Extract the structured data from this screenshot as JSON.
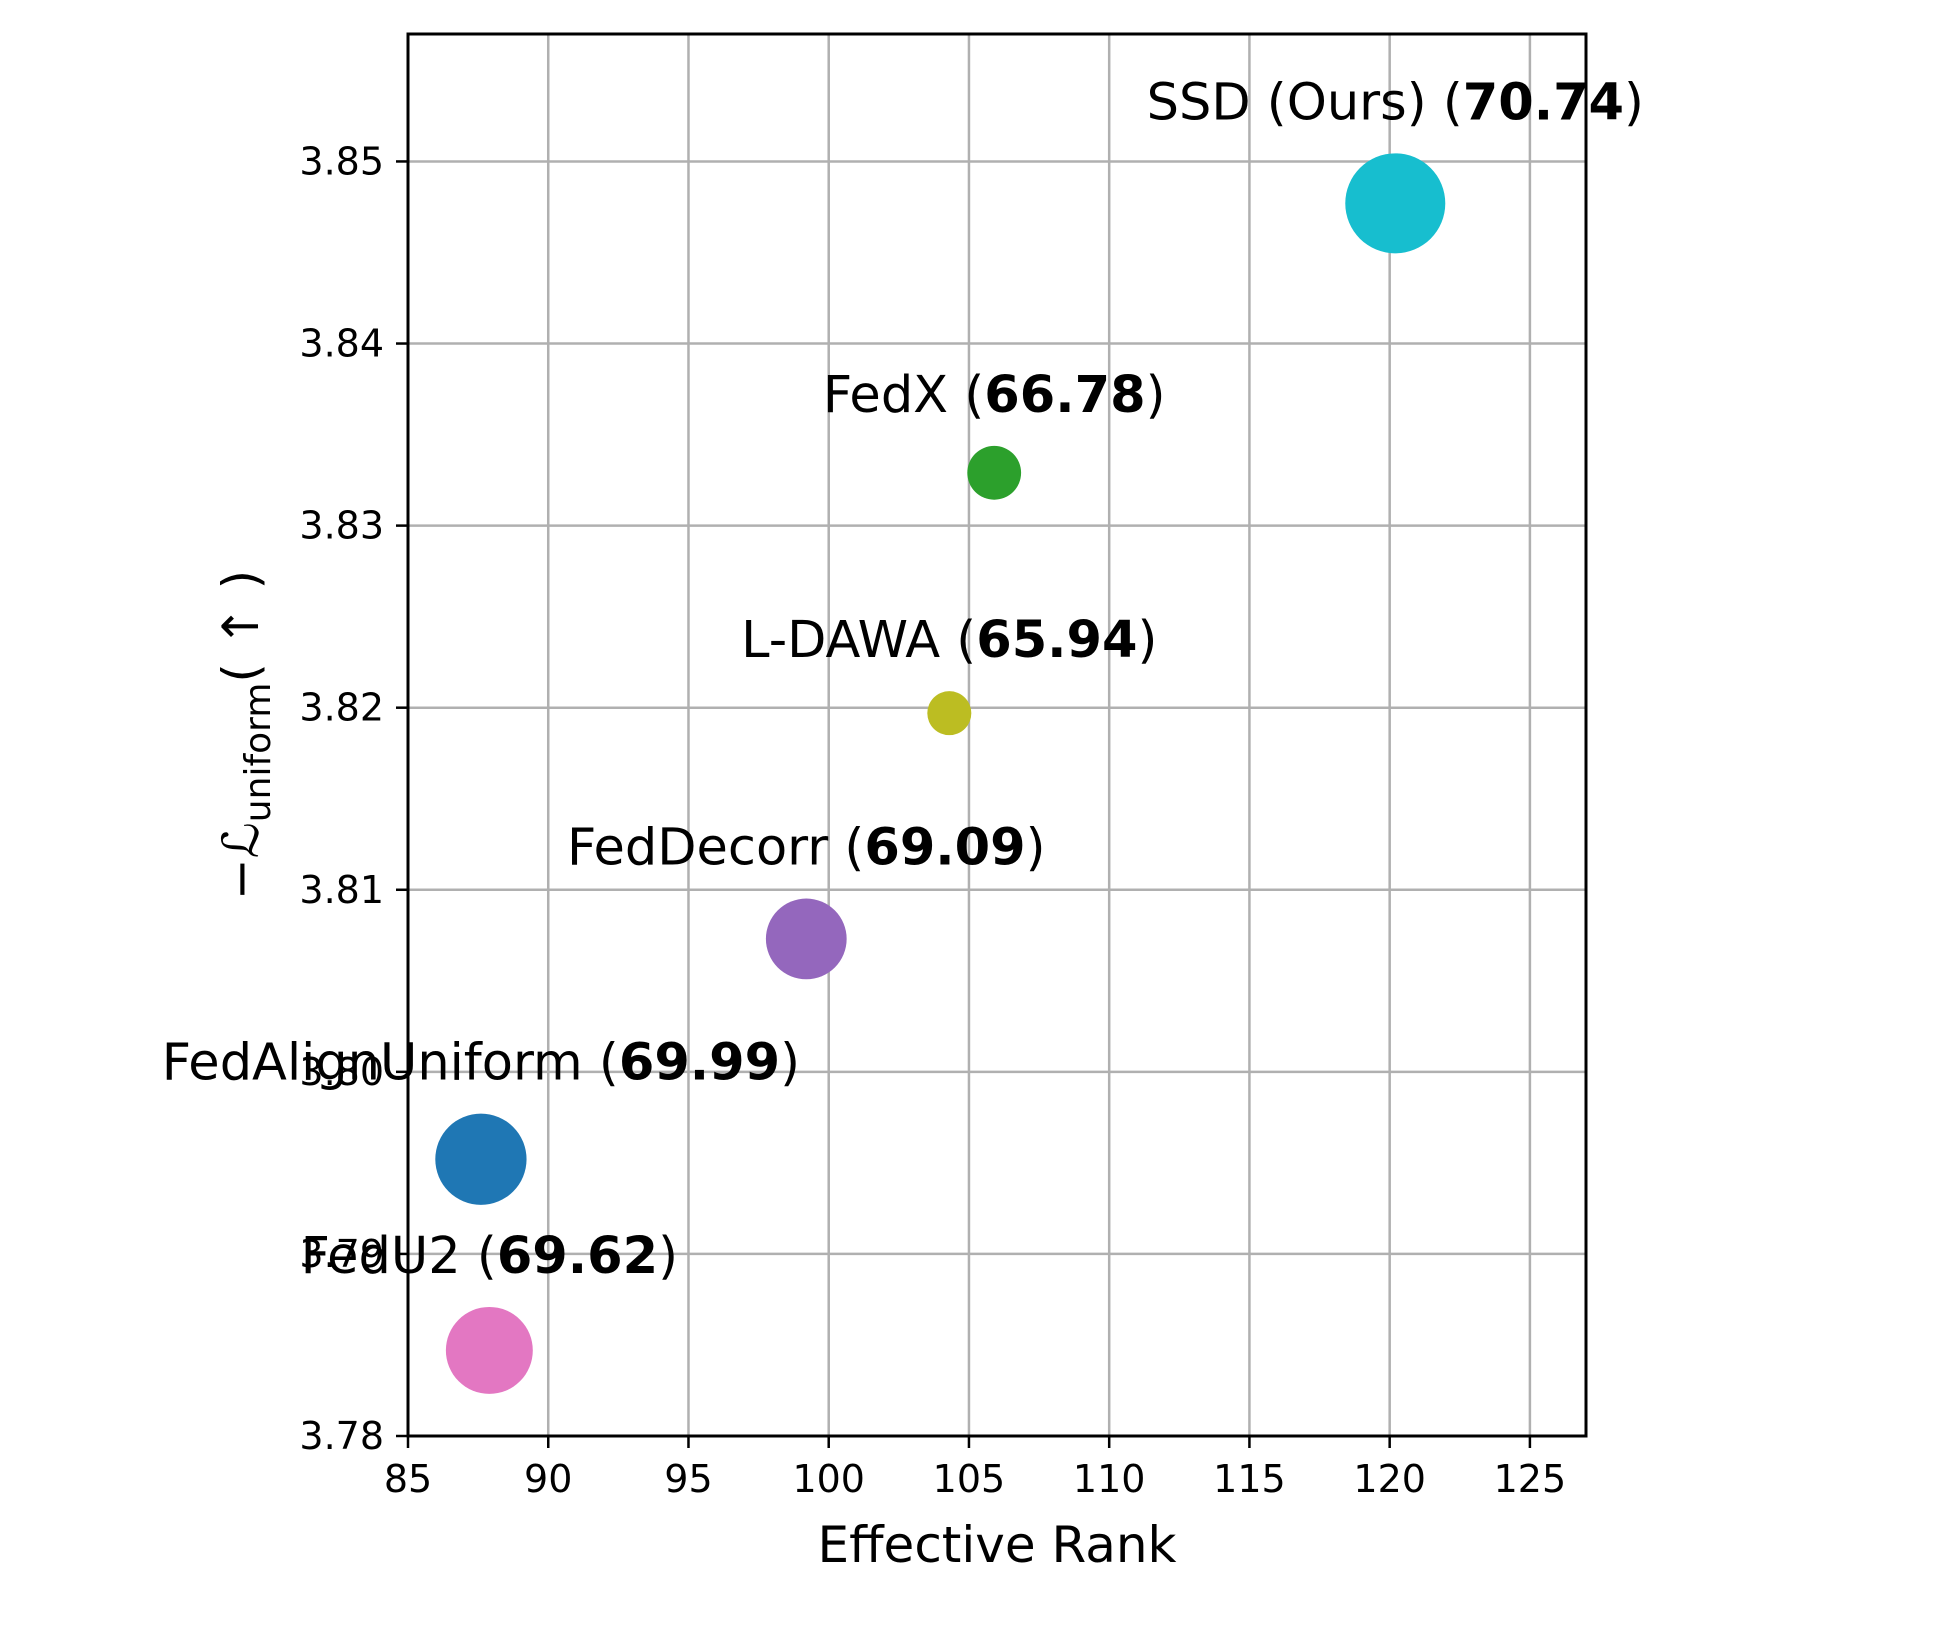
{
  "chart_data": {
    "type": "scatter",
    "title": "",
    "xlabel": "Effective Rank",
    "ylabel_symbol": "−ℒ",
    "ylabel_subscript": "uniform",
    "ylabel_suffix": "( ↑ )",
    "xlim": [
      85,
      127
    ],
    "ylim": [
      3.78,
      3.857
    ],
    "xticks": [
      85,
      90,
      95,
      100,
      105,
      110,
      115,
      120,
      125
    ],
    "yticks": [
      3.78,
      3.79,
      3.8,
      3.81,
      3.82,
      3.83,
      3.84,
      3.85
    ],
    "xtick_labels": [
      "85",
      "90",
      "95",
      "100",
      "105",
      "110",
      "115",
      "120",
      "125"
    ],
    "ytick_labels": [
      "3.78",
      "3.79",
      "3.80",
      "3.81",
      "3.82",
      "3.83",
      "3.84",
      "3.85"
    ],
    "grid": true,
    "points": [
      {
        "name": "SSD (Ours)",
        "x": 120.2,
        "y": 3.8477,
        "accuracy": "70.74",
        "color": "#17becf"
      },
      {
        "name": "FedX",
        "x": 105.9,
        "y": 3.8329,
        "accuracy": "66.78",
        "color": "#2ca02c"
      },
      {
        "name": "L-DAWA",
        "x": 104.3,
        "y": 3.8197,
        "accuracy": "65.94",
        "color": "#bcbd22"
      },
      {
        "name": "FedDecorr",
        "x": 99.2,
        "y": 3.8073,
        "accuracy": "69.09",
        "color": "#9467bd"
      },
      {
        "name": "FedAlignUniform",
        "x": 87.6,
        "y": 3.7952,
        "accuracy": "69.99",
        "color": "#1f77b4"
      },
      {
        "name": "FedU2",
        "x": 87.9,
        "y": 3.7847,
        "accuracy": "69.62",
        "color": "#e377c2"
      }
    ]
  }
}
